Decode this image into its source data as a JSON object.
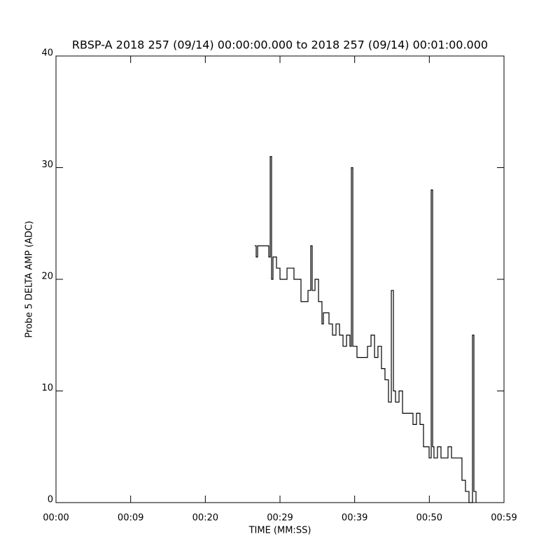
{
  "chart_data": {
    "type": "line",
    "title": "RBSP-A 2018 257 (09/14) 00:00:00.000 to 2018 257 (09/14) 00:01:00.000",
    "x_label": "TIME (MM:SS)",
    "y_label": "Probe 5 DELTA AMP (ADC)",
    "xlim": [
      0,
      60
    ],
    "xticks": [
      {
        "value": 0,
        "label": "00:00"
      },
      {
        "value": 10,
        "label": "00:09"
      },
      {
        "value": 20,
        "label": "00:20"
      },
      {
        "value": 30,
        "label": "00:29"
      },
      {
        "value": 40,
        "label": "00:39"
      },
      {
        "value": 50,
        "label": "00:50"
      },
      {
        "value": 60,
        "label": "00:59"
      }
    ],
    "ylim": [
      0,
      40
    ],
    "yticks": [
      0,
      10,
      20,
      30,
      40
    ],
    "series": [
      {
        "color": "#000000",
        "x": [
          26.62,
          26.81,
          27.0,
          28.5,
          28.69,
          28.87,
          29.06,
          29.53,
          30.0,
          30.94,
          31.87,
          32.81,
          33.75,
          34.12,
          34.31,
          34.69,
          35.16,
          35.62,
          35.81,
          36.56,
          37.03,
          37.5,
          37.97,
          38.44,
          38.91,
          39.37,
          39.56,
          39.75,
          40.31,
          41.25,
          41.72,
          42.19,
          42.66,
          43.12,
          43.59,
          44.06,
          44.53,
          44.91,
          45.19,
          45.47,
          45.94,
          46.41,
          46.87,
          47.81,
          48.28,
          48.75,
          49.22,
          49.69,
          49.97,
          50.25,
          50.44,
          50.62,
          51.09,
          51.56,
          52.5,
          52.97,
          53.91,
          54.37,
          54.84,
          55.31,
          55.78,
          55.97,
          56.25
        ],
        "values": [
          23,
          22,
          23,
          22,
          31,
          20,
          22,
          21,
          20,
          21,
          20,
          18,
          19,
          23,
          19,
          20,
          18,
          16,
          17,
          16,
          15,
          16,
          15,
          14,
          15,
          14,
          30,
          14,
          13,
          13,
          14,
          15,
          13,
          14,
          12,
          11,
          9,
          19,
          10,
          9,
          10,
          8,
          8,
          7,
          8,
          7,
          5,
          5,
          4,
          28,
          5,
          4,
          5,
          4,
          5,
          4,
          4,
          2,
          1,
          0,
          15,
          1,
          0
        ]
      }
    ]
  }
}
